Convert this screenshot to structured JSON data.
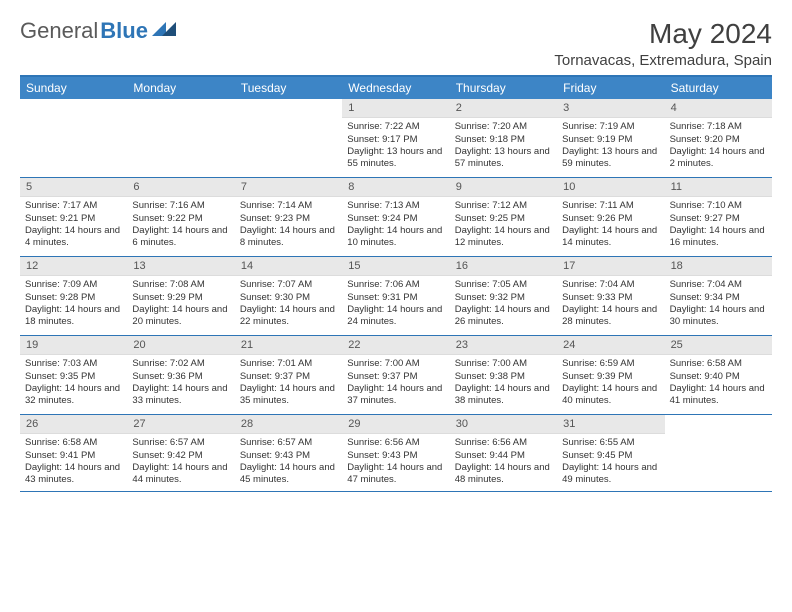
{
  "brand": {
    "name1": "General",
    "name2": "Blue"
  },
  "title": "May 2024",
  "location": "Tornavacas, Extremadura, Spain",
  "colors": {
    "header_bg": "#3d85c6",
    "border": "#2e75b6",
    "daynum_bg": "#e8e8e8",
    "text": "#333333"
  },
  "daysOfWeek": [
    "Sunday",
    "Monday",
    "Tuesday",
    "Wednesday",
    "Thursday",
    "Friday",
    "Saturday"
  ],
  "weeks": [
    [
      {
        "n": "",
        "sr": "",
        "ss": "",
        "dl": ""
      },
      {
        "n": "",
        "sr": "",
        "ss": "",
        "dl": ""
      },
      {
        "n": "",
        "sr": "",
        "ss": "",
        "dl": ""
      },
      {
        "n": "1",
        "sr": "7:22 AM",
        "ss": "9:17 PM",
        "dl": "13 hours and 55 minutes."
      },
      {
        "n": "2",
        "sr": "7:20 AM",
        "ss": "9:18 PM",
        "dl": "13 hours and 57 minutes."
      },
      {
        "n": "3",
        "sr": "7:19 AM",
        "ss": "9:19 PM",
        "dl": "13 hours and 59 minutes."
      },
      {
        "n": "4",
        "sr": "7:18 AM",
        "ss": "9:20 PM",
        "dl": "14 hours and 2 minutes."
      }
    ],
    [
      {
        "n": "5",
        "sr": "7:17 AM",
        "ss": "9:21 PM",
        "dl": "14 hours and 4 minutes."
      },
      {
        "n": "6",
        "sr": "7:16 AM",
        "ss": "9:22 PM",
        "dl": "14 hours and 6 minutes."
      },
      {
        "n": "7",
        "sr": "7:14 AM",
        "ss": "9:23 PM",
        "dl": "14 hours and 8 minutes."
      },
      {
        "n": "8",
        "sr": "7:13 AM",
        "ss": "9:24 PM",
        "dl": "14 hours and 10 minutes."
      },
      {
        "n": "9",
        "sr": "7:12 AM",
        "ss": "9:25 PM",
        "dl": "14 hours and 12 minutes."
      },
      {
        "n": "10",
        "sr": "7:11 AM",
        "ss": "9:26 PM",
        "dl": "14 hours and 14 minutes."
      },
      {
        "n": "11",
        "sr": "7:10 AM",
        "ss": "9:27 PM",
        "dl": "14 hours and 16 minutes."
      }
    ],
    [
      {
        "n": "12",
        "sr": "7:09 AM",
        "ss": "9:28 PM",
        "dl": "14 hours and 18 minutes."
      },
      {
        "n": "13",
        "sr": "7:08 AM",
        "ss": "9:29 PM",
        "dl": "14 hours and 20 minutes."
      },
      {
        "n": "14",
        "sr": "7:07 AM",
        "ss": "9:30 PM",
        "dl": "14 hours and 22 minutes."
      },
      {
        "n": "15",
        "sr": "7:06 AM",
        "ss": "9:31 PM",
        "dl": "14 hours and 24 minutes."
      },
      {
        "n": "16",
        "sr": "7:05 AM",
        "ss": "9:32 PM",
        "dl": "14 hours and 26 minutes."
      },
      {
        "n": "17",
        "sr": "7:04 AM",
        "ss": "9:33 PM",
        "dl": "14 hours and 28 minutes."
      },
      {
        "n": "18",
        "sr": "7:04 AM",
        "ss": "9:34 PM",
        "dl": "14 hours and 30 minutes."
      }
    ],
    [
      {
        "n": "19",
        "sr": "7:03 AM",
        "ss": "9:35 PM",
        "dl": "14 hours and 32 minutes."
      },
      {
        "n": "20",
        "sr": "7:02 AM",
        "ss": "9:36 PM",
        "dl": "14 hours and 33 minutes."
      },
      {
        "n": "21",
        "sr": "7:01 AM",
        "ss": "9:37 PM",
        "dl": "14 hours and 35 minutes."
      },
      {
        "n": "22",
        "sr": "7:00 AM",
        "ss": "9:37 PM",
        "dl": "14 hours and 37 minutes."
      },
      {
        "n": "23",
        "sr": "7:00 AM",
        "ss": "9:38 PM",
        "dl": "14 hours and 38 minutes."
      },
      {
        "n": "24",
        "sr": "6:59 AM",
        "ss": "9:39 PM",
        "dl": "14 hours and 40 minutes."
      },
      {
        "n": "25",
        "sr": "6:58 AM",
        "ss": "9:40 PM",
        "dl": "14 hours and 41 minutes."
      }
    ],
    [
      {
        "n": "26",
        "sr": "6:58 AM",
        "ss": "9:41 PM",
        "dl": "14 hours and 43 minutes."
      },
      {
        "n": "27",
        "sr": "6:57 AM",
        "ss": "9:42 PM",
        "dl": "14 hours and 44 minutes."
      },
      {
        "n": "28",
        "sr": "6:57 AM",
        "ss": "9:43 PM",
        "dl": "14 hours and 45 minutes."
      },
      {
        "n": "29",
        "sr": "6:56 AM",
        "ss": "9:43 PM",
        "dl": "14 hours and 47 minutes."
      },
      {
        "n": "30",
        "sr": "6:56 AM",
        "ss": "9:44 PM",
        "dl": "14 hours and 48 minutes."
      },
      {
        "n": "31",
        "sr": "6:55 AM",
        "ss": "9:45 PM",
        "dl": "14 hours and 49 minutes."
      },
      {
        "n": "",
        "sr": "",
        "ss": "",
        "dl": ""
      }
    ]
  ],
  "labels": {
    "sunrise": "Sunrise:",
    "sunset": "Sunset:",
    "daylight": "Daylight:"
  }
}
